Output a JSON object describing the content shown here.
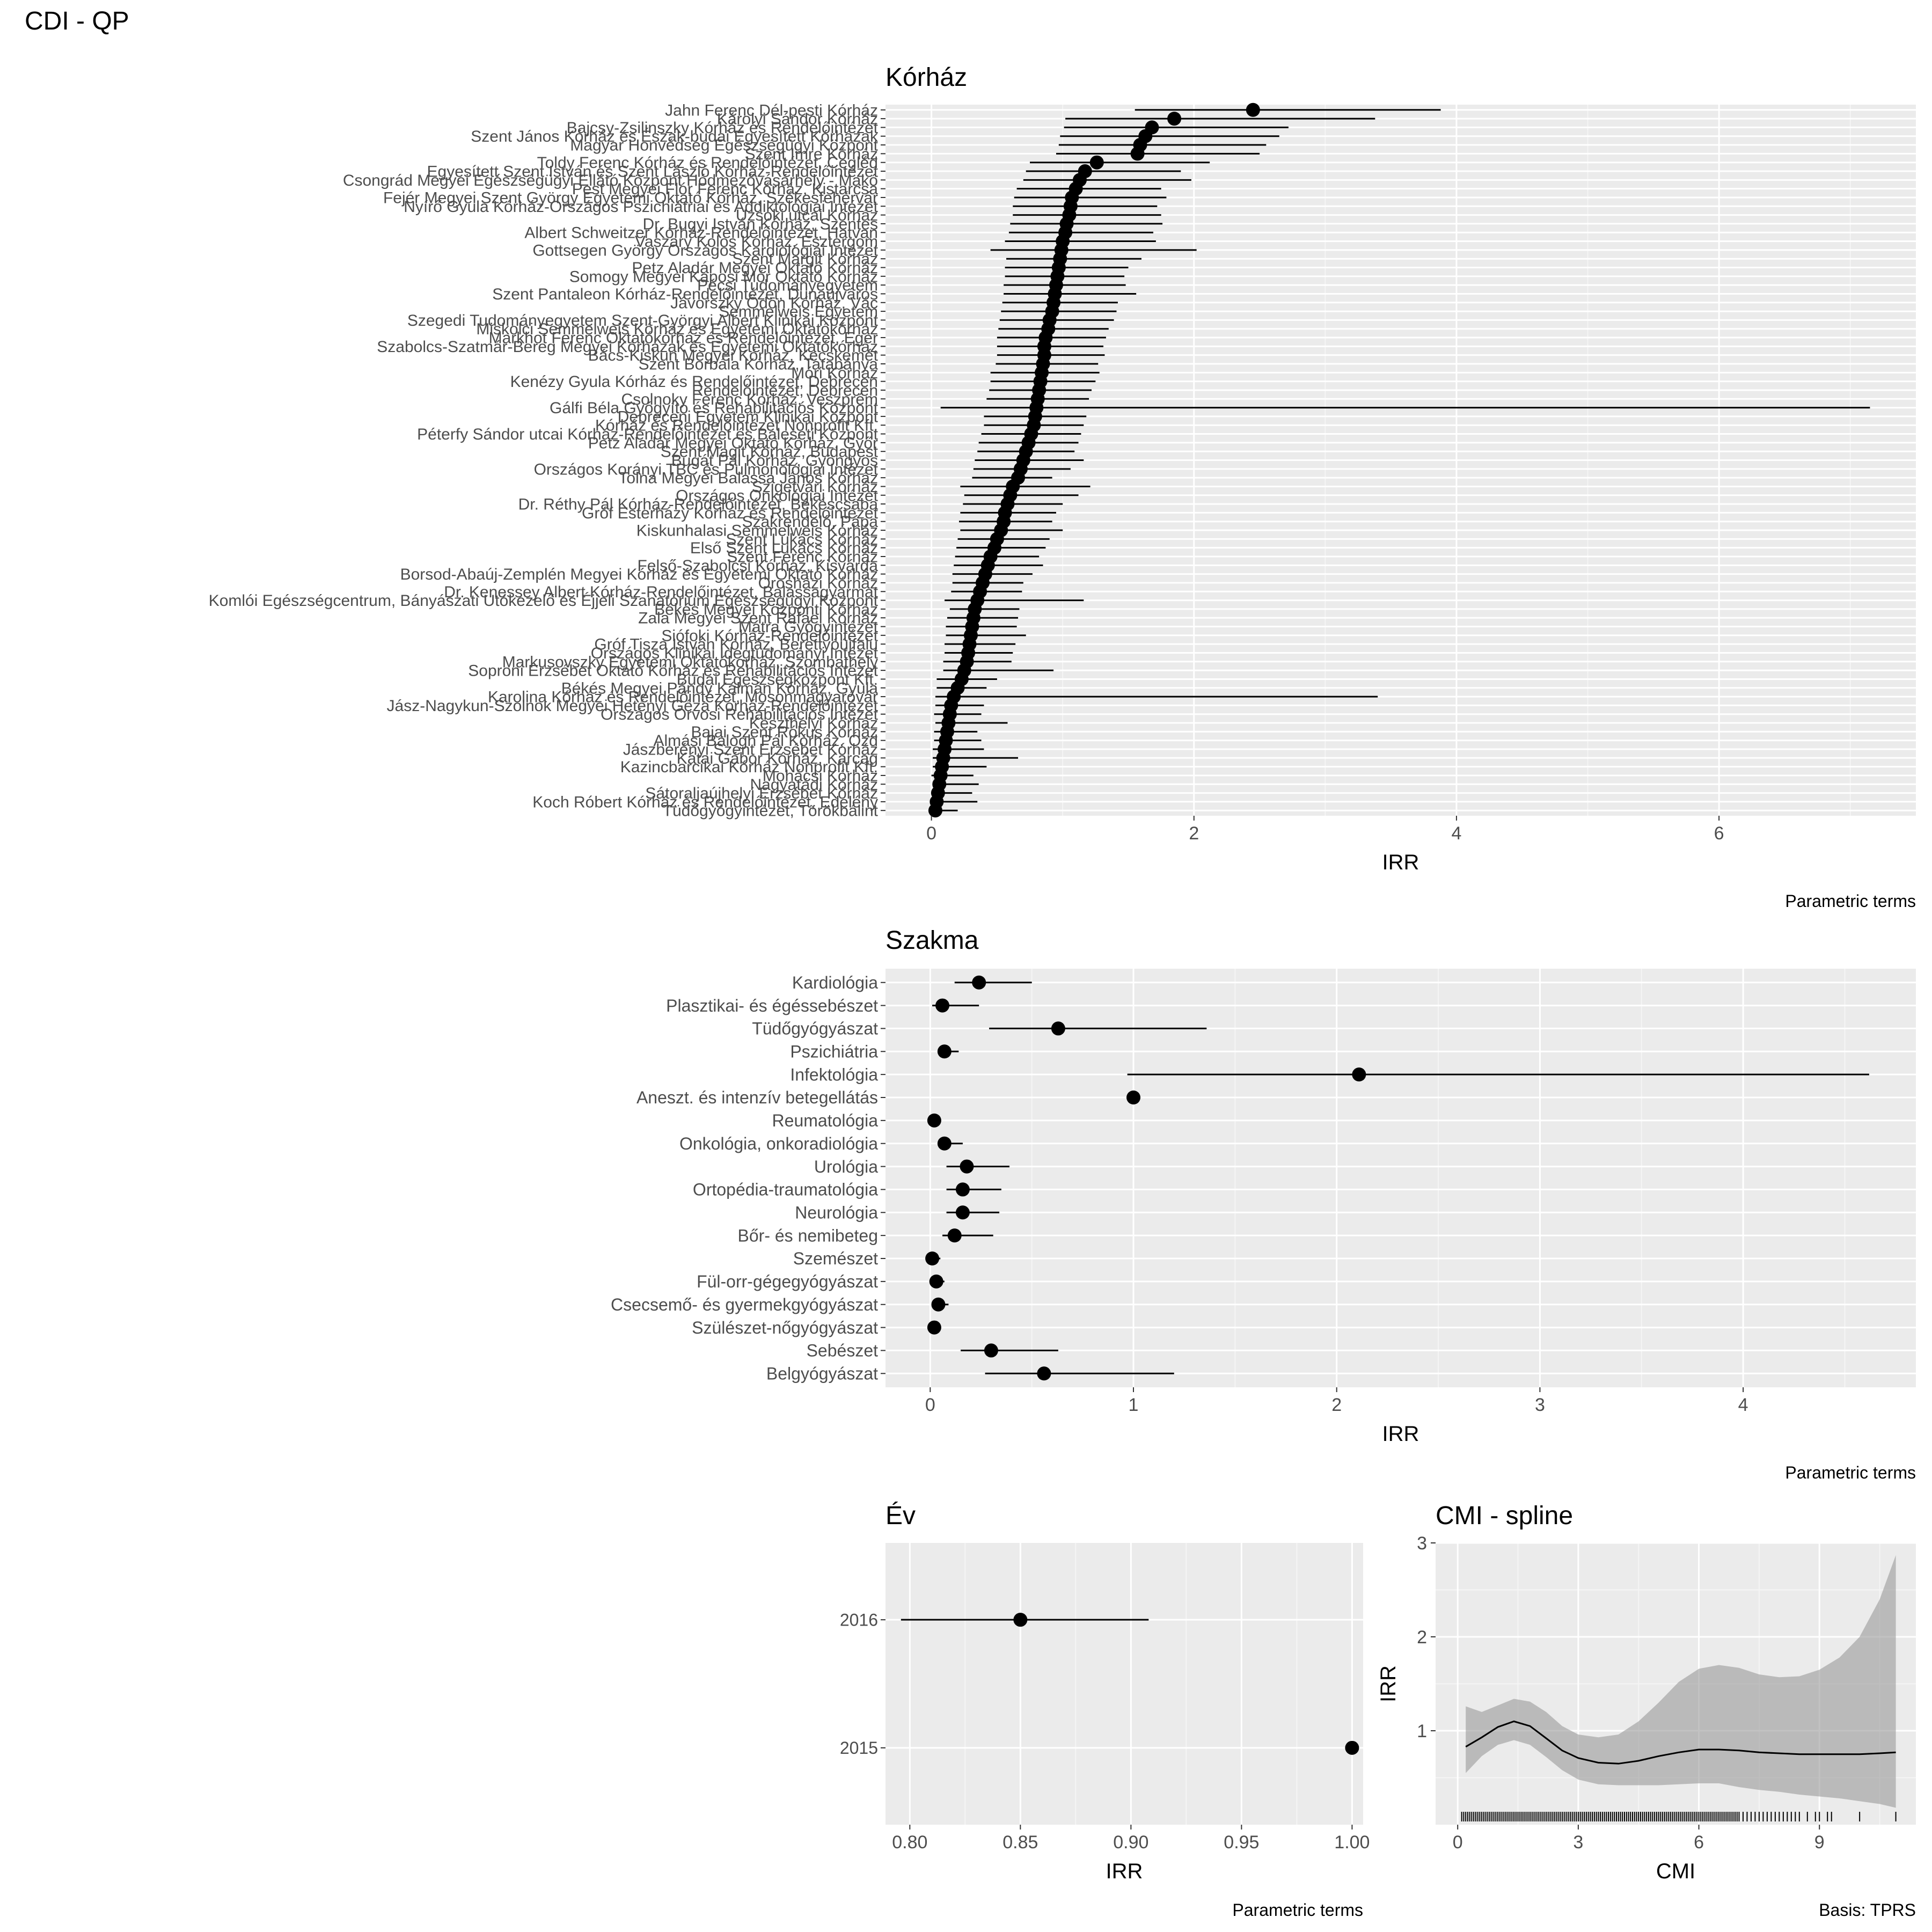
{
  "figure": {
    "title": "CDI  -  QP"
  },
  "chart_data": [
    {
      "id": "korhaz",
      "type": "scatter",
      "title": "Kórház",
      "xlabel": "IRR",
      "caption": "Parametric terms",
      "xlim": [
        -0.35,
        7.5
      ],
      "xticks": [
        0,
        2,
        4,
        6
      ],
      "categories": [
        "Jahn Ferenc Dél-pesti Kórház",
        "Károlyi Sándor Kórház",
        "Bajcsy-Zsilinszky Kórház és Rendelőintézet",
        "Szent János Kórház és Észak-budai Egyesített Kórházak",
        "Magyar Honvédség Egészségügyi Központ",
        "Szent Imre Kórház",
        "Toldy Ferenc Kórház és Rendelőintézet, Cegléd",
        "Egyesített Szent István és Szent László Kórház-Rendelőintézet",
        "Csongrád Megyei Egészségügyi Ellátó Központ Hódmezővásárhely - Makó",
        "Pest Megyei Flór Ferenc Kórház, Kistarcsa",
        "Fejér Megyei Szent György Egyetemi Oktató Kórház, Székesfehérvár",
        "Nyírő Gyula Kórház-Országos Pszichiátriai és Addiktológiai Intézet",
        "Uzsoki utcai Kórház",
        "Dr. Bugyi István Kórház, Szentes",
        "Albert Schweitzer Kórház-Rendelőintézet, Hatvan",
        "Vaszary Kolos Kórház, Esztergom",
        "Gottsegen György Országos Kardiológiai Intézet",
        "Szent Margit Kórház",
        "Petz Aladár Megyei Oktató Kórház",
        "Somogy Megyei Kaposi Mór Oktató Kórház",
        "Pécsi Tudományegyetem",
        "Szent Pantaleon Kórház-Rendelőintézet, Dunaújváros",
        "Jávorszky Ödön Kórház, Vác",
        "Semmelweis Egyetem",
        "Szegedi Tudományegyetem Szent-Györgyi Albert Klinikai Központ",
        "Miskolci Semmelweis Kórház és Egyetemi Oktatókórház",
        "Markhot Ferenc Oktatókórház és Rendelőintézet, Eger",
        "Szabolcs-Szatmár-Bereg Megyei Kórházak és Egyetemi Oktatókórház",
        "Bács-Kiskun Megyei Kórház, Kecskemét",
        "Szent Borbála Kórház, Tatabánya",
        "Móri Kórház",
        "Kenézy Gyula Kórház és Rendelőintézet, Debrecen",
        "Rendelőintézet, Debrecen",
        "Csolnoky Ferenc Kórház, Veszprém",
        "Gálfi Béla Gyógyító és Rehabilitációs Központ",
        "Debreceni Egyetem Klinikai Központ",
        "Kórház és Rendelőintézet Nonprofit Kft.",
        "Péterfy Sándor utcai Kórház-Rendelőintézet és Baleseti Központ",
        "Petz Aladár Megyei Oktató Kórház, Győr",
        "Szent Magit Kórház, Budapest",
        "Bugát Pál Kórház, Gyöngyös",
        "Országos Korányi TBC és Pulmonológiai Intézet",
        "Tolna Megyei Balassa János Kórház",
        "Szigetvári Kórház",
        "Országos Onkológiai Intézet",
        "Dr. Réthy Pál Kórház-Rendelőintézet, Békéscsaba",
        "Gróf Esterházy Kórház és Rendelőintézet",
        "Szakrendelő, Pápa",
        "Kiskunhalasi Semmelweis Kórház",
        "Szent Lukács Kórház",
        "Első Szent Lukács Kórház",
        "Szent Ferenc Kórház",
        "Felső-Szabolcsi Kórház, Kisvárda",
        "Borsod-Abaúj-Zemplén Megyei Kórház és Egyetemi Oktató Kórház",
        "Orosházi Kórház",
        "Dr. Kenessey Albert Kórház-Rendelőintézet, Balassagyarmat",
        "Komlói Egészségcentrum, Bányászati Utókezelő és Éjjeli Szanatórium Egészségügyi Központ",
        "Békés Megyei Központi Kórház",
        "Zala Megyei Szent Rafael Kórház",
        "Mátra Gyógyintézet",
        "Siófoki Kórház-Rendelőintézet",
        "Gróf Tisza István Kórház, Berettyóújfalu",
        "Országos Klinikai Idegtudományi Intézet",
        "Markusovszky Egyetemi Oktatókórház, Szombathely",
        "Soproni Erzsébet Oktató Kórház és Rehabilitációs Intézet",
        "Budai Egészségközpont Kft.",
        "Békés Megyei Pándy Kálmán Kórház, Gyula",
        "Karolina Kórház és Rendelőintézet, Mosonmagyaróvár",
        "Jász-Nagykun-Szolnok Megyei Hetényi Géza Kórház-Rendelőintézet",
        "Országos Orvosi Rehabilitációs Intézet",
        "Keszthelyi Kórház",
        "Bajai Szent Rókus Kórház",
        "Almási Balogh Pál Kórház, Ózd",
        "Jászberényi Szent Erzsébet Kórház",
        "Kátai Gábor Kórház, Karcag",
        "Kazincbarcikai Kórház Nonprofit Kft.",
        "Mohácsi Kórház",
        "Nagyatádi Kórház",
        "Sátoraljaújhelyi Erzsébet Kórház",
        "Koch Róbert Kórház és Rendelőintézet, Edelény",
        "Tüdőgyógyintézet, Törökbálint"
      ],
      "estimates": [
        2.45,
        1.85,
        1.68,
        1.63,
        1.59,
        1.57,
        1.26,
        1.17,
        1.13,
        1.1,
        1.07,
        1.06,
        1.05,
        1.03,
        1.02,
        1.0,
        0.99,
        0.98,
        0.97,
        0.96,
        0.95,
        0.94,
        0.93,
        0.92,
        0.9,
        0.89,
        0.87,
        0.86,
        0.86,
        0.85,
        0.84,
        0.83,
        0.82,
        0.81,
        0.8,
        0.79,
        0.78,
        0.76,
        0.74,
        0.72,
        0.7,
        0.68,
        0.66,
        0.62,
        0.6,
        0.58,
        0.56,
        0.55,
        0.53,
        0.5,
        0.48,
        0.45,
        0.43,
        0.41,
        0.39,
        0.37,
        0.35,
        0.33,
        0.32,
        0.31,
        0.3,
        0.29,
        0.28,
        0.27,
        0.25,
        0.23,
        0.2,
        0.17,
        0.15,
        0.14,
        0.13,
        0.12,
        0.11,
        0.1,
        0.09,
        0.08,
        0.07,
        0.06,
        0.05,
        0.04,
        0.03
      ],
      "lower": [
        1.55,
        1.02,
        1.01,
        0.98,
        0.97,
        0.95,
        0.75,
        0.72,
        0.7,
        0.65,
        0.63,
        0.62,
        0.62,
        0.6,
        0.59,
        0.56,
        0.45,
        0.57,
        0.56,
        0.56,
        0.55,
        0.55,
        0.54,
        0.53,
        0.52,
        0.51,
        0.5,
        0.5,
        0.5,
        0.49,
        0.45,
        0.45,
        0.44,
        0.42,
        0.07,
        0.4,
        0.4,
        0.38,
        0.36,
        0.35,
        0.33,
        0.32,
        0.31,
        0.22,
        0.25,
        0.24,
        0.22,
        0.21,
        0.22,
        0.2,
        0.19,
        0.18,
        0.17,
        0.16,
        0.16,
        0.15,
        0.1,
        0.14,
        0.12,
        0.11,
        0.11,
        0.1,
        0.1,
        0.09,
        0.09,
        0.04,
        0.04,
        0.03,
        0.03,
        0.02,
        0.03,
        0.02,
        0.02,
        0.01,
        0.01,
        0.01,
        0.0,
        0.01,
        0.0,
        0.0,
        0.0
      ],
      "upper": [
        3.88,
        3.38,
        2.72,
        2.65,
        2.55,
        2.5,
        2.12,
        1.9,
        1.98,
        1.75,
        1.79,
        1.72,
        1.75,
        1.76,
        1.69,
        1.71,
        2.02,
        1.6,
        1.5,
        1.47,
        1.48,
        1.56,
        1.42,
        1.41,
        1.39,
        1.35,
        1.33,
        1.31,
        1.32,
        1.27,
        1.28,
        1.25,
        1.22,
        1.2,
        7.15,
        1.18,
        1.16,
        1.14,
        1.12,
        1.09,
        1.16,
        1.06,
        0.92,
        1.21,
        1.12,
        1.0,
        0.95,
        0.92,
        1.0,
        0.9,
        0.87,
        0.82,
        0.85,
        0.77,
        0.7,
        0.69,
        1.16,
        0.67,
        0.66,
        0.65,
        0.72,
        0.64,
        0.62,
        0.61,
        0.93,
        0.5,
        0.42,
        3.4,
        0.4,
        0.38,
        0.58,
        0.35,
        0.38,
        0.4,
        0.66,
        0.42,
        0.32,
        0.36,
        0.31,
        0.35,
        0.2
      ]
    },
    {
      "id": "szakma",
      "type": "scatter",
      "title": "Szakma",
      "xlabel": "IRR",
      "caption": "Parametric terms",
      "xlim": [
        -0.22,
        4.85
      ],
      "xticks": [
        0,
        1,
        2,
        3,
        4
      ],
      "categories": [
        "Kardiológia",
        "Plasztikai- és égéssebészet",
        "Tüdőgyógyászat",
        "Pszichiátria",
        "Infektológia",
        "Aneszt. és intenzív betegellátás",
        "Reumatológia",
        "Onkológia, onkoradiológia",
        "Urológia",
        "Ortopédia-traumatológia",
        "Neurológia",
        "Bőr- és nemibeteg",
        "Szemészet",
        "Fül-orr-gégegyógyászat",
        "Csecsemő- és gyermekgyógyászat",
        "Szülészet-nőgyógyászat",
        "Sebészet",
        "Belgyógyászat"
      ],
      "estimates": [
        0.24,
        0.06,
        0.63,
        0.07,
        2.11,
        1.0,
        0.02,
        0.07,
        0.18,
        0.16,
        0.16,
        0.12,
        0.01,
        0.03,
        0.04,
        0.02,
        0.3,
        0.56
      ],
      "lower": [
        0.12,
        0.01,
        0.29,
        0.04,
        0.97,
        1.0,
        0.0,
        0.04,
        0.08,
        0.08,
        0.08,
        0.06,
        0.0,
        0.01,
        0.01,
        0.0,
        0.15,
        0.27
      ],
      "upper": [
        0.5,
        0.24,
        1.36,
        0.14,
        4.62,
        1.0,
        0.05,
        0.16,
        0.39,
        0.35,
        0.34,
        0.31,
        0.05,
        0.07,
        0.09,
        0.05,
        0.63,
        1.2
      ]
    },
    {
      "id": "ev",
      "type": "scatter",
      "title": "Év",
      "xlabel": "IRR",
      "caption": "Parametric terms",
      "xlim": [
        0.789,
        1.005
      ],
      "xticks": [
        0.8,
        0.85,
        0.9,
        0.95,
        1.0
      ],
      "xtick_labels": [
        "0.80",
        "0.85",
        "0.90",
        "0.95",
        "1.00"
      ],
      "categories": [
        "2016",
        "2015"
      ],
      "estimates": [
        0.85,
        1.0
      ],
      "lower": [
        0.796,
        1.0
      ],
      "upper": [
        0.908,
        1.0
      ]
    },
    {
      "id": "cmi",
      "type": "line",
      "title": "CMI - spline",
      "xlabel": "CMI",
      "ylabel": "IRR",
      "caption": "Basis: TPRS",
      "xlim": [
        -0.55,
        11.4
      ],
      "ylim": [
        0.0,
        3.0
      ],
      "xticks": [
        0,
        3,
        6,
        9
      ],
      "yticks": [
        1,
        2,
        3
      ],
      "x": [
        0.2,
        0.6,
        1.0,
        1.4,
        1.8,
        2.2,
        2.6,
        3.0,
        3.5,
        4.0,
        4.5,
        5.0,
        5.5,
        6.0,
        6.5,
        7.0,
        7.5,
        8.0,
        8.5,
        9.0,
        9.5,
        10.0,
        10.5,
        10.9
      ],
      "y": [
        0.83,
        0.93,
        1.04,
        1.1,
        1.05,
        0.92,
        0.79,
        0.71,
        0.66,
        0.65,
        0.68,
        0.73,
        0.77,
        0.8,
        0.8,
        0.79,
        0.77,
        0.76,
        0.75,
        0.75,
        0.75,
        0.75,
        0.76,
        0.77
      ],
      "y_lower": [
        0.55,
        0.73,
        0.85,
        0.9,
        0.85,
        0.72,
        0.58,
        0.48,
        0.43,
        0.42,
        0.42,
        0.42,
        0.43,
        0.44,
        0.44,
        0.4,
        0.37,
        0.35,
        0.32,
        0.3,
        0.28,
        0.25,
        0.22,
        0.18
      ],
      "y_upper": [
        1.26,
        1.2,
        1.27,
        1.34,
        1.31,
        1.2,
        1.05,
        0.96,
        0.93,
        0.96,
        1.1,
        1.3,
        1.52,
        1.66,
        1.7,
        1.67,
        1.6,
        1.57,
        1.58,
        1.65,
        1.78,
        2.0,
        2.4,
        2.87
      ],
      "rug": [
        0.1,
        0.15,
        0.2,
        0.25,
        0.3,
        0.35,
        0.4,
        0.45,
        0.5,
        0.55,
        0.6,
        0.65,
        0.7,
        0.75,
        0.8,
        0.85,
        0.9,
        0.95,
        1.0,
        1.05,
        1.1,
        1.15,
        1.2,
        1.25,
        1.3,
        1.35,
        1.4,
        1.45,
        1.5,
        1.55,
        1.6,
        1.65,
        1.7,
        1.75,
        1.8,
        1.85,
        1.9,
        1.95,
        2.0,
        2.05,
        2.1,
        2.15,
        2.2,
        2.25,
        2.3,
        2.35,
        2.4,
        2.45,
        2.5,
        2.55,
        2.6,
        2.65,
        2.7,
        2.75,
        2.8,
        2.85,
        2.9,
        2.95,
        3.0,
        3.05,
        3.1,
        3.15,
        3.2,
        3.25,
        3.3,
        3.35,
        3.4,
        3.45,
        3.5,
        3.55,
        3.6,
        3.65,
        3.7,
        3.75,
        3.8,
        3.85,
        3.9,
        3.95,
        4.0,
        4.05,
        4.1,
        4.15,
        4.2,
        4.25,
        4.3,
        4.35,
        4.4,
        4.45,
        4.5,
        4.55,
        4.6,
        4.65,
        4.7,
        4.75,
        4.8,
        4.85,
        4.9,
        4.95,
        5.0,
        5.05,
        5.1,
        5.15,
        5.2,
        5.25,
        5.3,
        5.35,
        5.4,
        5.45,
        5.5,
        5.55,
        5.6,
        5.65,
        5.7,
        5.75,
        5.8,
        5.85,
        5.9,
        5.95,
        6.0,
        6.05,
        6.1,
        6.15,
        6.2,
        6.25,
        6.3,
        6.35,
        6.4,
        6.45,
        6.5,
        6.55,
        6.6,
        6.65,
        6.7,
        6.75,
        6.8,
        6.85,
        6.9,
        6.95,
        7.0,
        7.1,
        7.2,
        7.3,
        7.4,
        7.5,
        7.6,
        7.7,
        7.8,
        7.9,
        8.0,
        8.1,
        8.2,
        8.3,
        8.4,
        8.5,
        8.7,
        8.9,
        9.0,
        9.2,
        9.3,
        10.0,
        10.9
      ]
    }
  ]
}
